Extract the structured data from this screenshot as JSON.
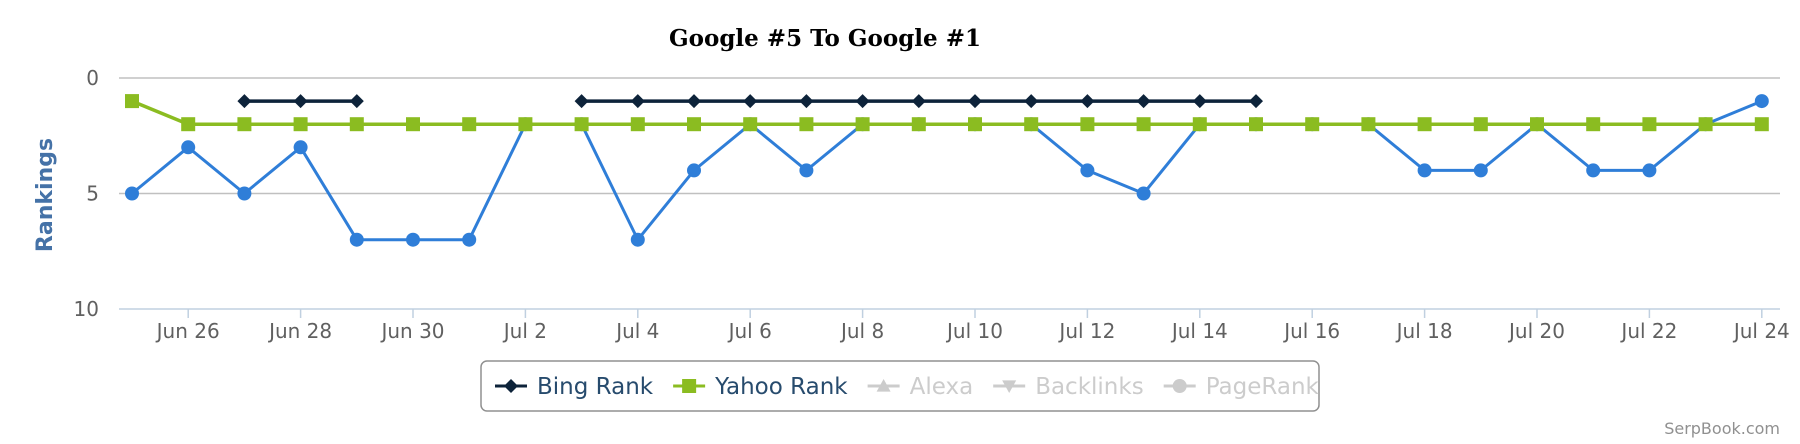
{
  "chart_data": {
    "type": "line",
    "title": "Google #5 To Google #1",
    "ylabel": "Rankings",
    "ylim": [
      0,
      10
    ],
    "y_reversed": true,
    "yticks": [
      "0",
      "5",
      "10"
    ],
    "x": [
      "Jun 25",
      "Jun 26",
      "Jun 27",
      "Jun 28",
      "Jun 29",
      "Jun 30",
      "Jul 1",
      "Jul 2",
      "Jul 3",
      "Jul 4",
      "Jul 5",
      "Jul 6",
      "Jul 7",
      "Jul 8",
      "Jul 9",
      "Jul 10",
      "Jul 11",
      "Jul 12",
      "Jul 13",
      "Jul 14",
      "Jul 15",
      "Jul 16",
      "Jul 17",
      "Jul 18",
      "Jul 19",
      "Jul 20",
      "Jul 21",
      "Jul 22",
      "Jul 23",
      "Jul 24"
    ],
    "xtick_labels": [
      "Jun 26",
      "Jun 28",
      "Jun 30",
      "Jul 2",
      "Jul 4",
      "Jul 6",
      "Jul 8",
      "Jul 10",
      "Jul 12",
      "Jul 14",
      "Jul 16",
      "Jul 18",
      "Jul 20",
      "Jul 22",
      "Jul 24"
    ],
    "grid": true,
    "legend_position": "bottom",
    "series": [
      {
        "color": "#2F7ED8",
        "marker": "circle",
        "in_legend": false,
        "values": [
          5,
          3,
          5,
          3,
          7,
          7,
          7,
          2,
          2,
          7,
          4,
          2,
          4,
          2,
          2,
          2,
          2,
          4,
          5,
          2,
          2,
          2,
          2,
          4,
          4,
          2,
          4,
          4,
          2,
          1
        ]
      },
      {
        "name": "Bing Rank",
        "color": "#0D233A",
        "marker": "diamond",
        "in_legend": true,
        "values": [
          null,
          null,
          1,
          1,
          1,
          null,
          null,
          null,
          1,
          1,
          1,
          1,
          1,
          1,
          1,
          1,
          1,
          1,
          1,
          1,
          1,
          null,
          null,
          null,
          null,
          null,
          null,
          null,
          null,
          null
        ]
      },
      {
        "name": "Yahoo Rank",
        "color": "#8BBC21",
        "marker": "square",
        "in_legend": true,
        "values": [
          1,
          2,
          2,
          2,
          2,
          2,
          2,
          2,
          2,
          2,
          2,
          2,
          2,
          2,
          2,
          2,
          2,
          2,
          2,
          2,
          2,
          2,
          2,
          2,
          2,
          2,
          2,
          2,
          2,
          2
        ]
      }
    ],
    "legend": [
      {
        "name": "Bing Rank",
        "color": "#0D233A",
        "marker": "diamond",
        "active": true
      },
      {
        "name": "Yahoo Rank",
        "color": "#8BBC21",
        "marker": "square",
        "active": true
      },
      {
        "name": "Alexa",
        "color": "#CCCCCC",
        "marker": "triangle",
        "active": false
      },
      {
        "name": "Backlinks",
        "color": "#CCCCCC",
        "marker": "triangle-down",
        "active": false
      },
      {
        "name": "PageRank",
        "color": "#CCCCCC",
        "marker": "circle",
        "active": false
      }
    ],
    "legend_text_color": "#274B6D",
    "legend_inactive_text_color": "#CCCCCC",
    "credit": "SerpBook.com"
  }
}
